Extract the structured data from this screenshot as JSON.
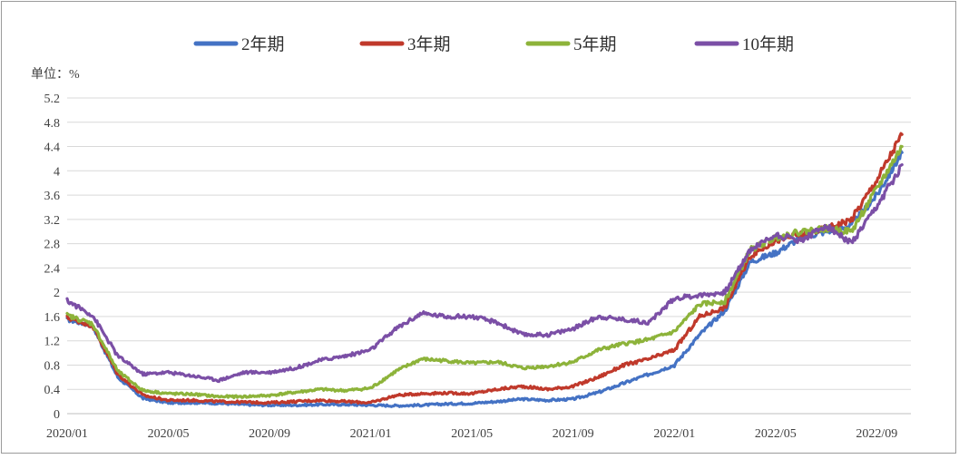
{
  "chart_data": {
    "type": "line",
    "unit_label": "单位：%",
    "yticks": [
      "0",
      "0.4",
      "0.8",
      "1.2",
      "1.6",
      "2",
      "2.4",
      "2.8",
      "3.2",
      "3.6",
      "4",
      "4.4",
      "4.8",
      "5.2"
    ],
    "ylim": [
      0,
      5.2
    ],
    "xticks": [
      "2020/01",
      "2020/05",
      "2020/09",
      "2021/01",
      "2021/05",
      "2021/09",
      "2022/01",
      "2022/05",
      "2022/09"
    ],
    "x_range": [
      "2020/01",
      "2022/10"
    ],
    "grid": true,
    "legend_position": "top",
    "series": [
      {
        "name": "2年期",
        "color": "#4472C4",
        "points": [
          [
            "2020/01",
            1.55
          ],
          [
            "2020/02",
            1.45
          ],
          [
            "2020/03",
            0.6
          ],
          [
            "2020/04",
            0.25
          ],
          [
            "2020/05",
            0.18
          ],
          [
            "2020/06",
            0.18
          ],
          [
            "2020/07",
            0.17
          ],
          [
            "2020/08",
            0.15
          ],
          [
            "2020/09",
            0.14
          ],
          [
            "2020/10",
            0.14
          ],
          [
            "2020/11",
            0.15
          ],
          [
            "2020/12",
            0.15
          ],
          [
            "2021/01",
            0.14
          ],
          [
            "2021/02",
            0.13
          ],
          [
            "2021/03",
            0.14
          ],
          [
            "2021/04",
            0.16
          ],
          [
            "2021/05",
            0.17
          ],
          [
            "2021/06",
            0.2
          ],
          [
            "2021/07",
            0.24
          ],
          [
            "2021/08",
            0.22
          ],
          [
            "2021/09",
            0.24
          ],
          [
            "2021/10",
            0.35
          ],
          [
            "2021/11",
            0.5
          ],
          [
            "2021/12",
            0.65
          ],
          [
            "2022/01",
            0.8
          ],
          [
            "2022/02",
            1.3
          ],
          [
            "2022/03",
            1.7
          ],
          [
            "2022/04",
            2.5
          ],
          [
            "2022/05",
            2.65
          ],
          [
            "2022/06",
            2.9
          ],
          [
            "2022/07",
            3.0
          ],
          [
            "2022/08",
            3.1
          ],
          [
            "2022/09",
            3.6
          ],
          [
            "2022/10",
            4.3
          ]
        ]
      },
      {
        "name": "3年期",
        "color": "#C0392B",
        "points": [
          [
            "2020/01",
            1.58
          ],
          [
            "2020/02",
            1.45
          ],
          [
            "2020/03",
            0.65
          ],
          [
            "2020/04",
            0.3
          ],
          [
            "2020/05",
            0.22
          ],
          [
            "2020/06",
            0.22
          ],
          [
            "2020/07",
            0.2
          ],
          [
            "2020/08",
            0.19
          ],
          [
            "2020/09",
            0.18
          ],
          [
            "2020/10",
            0.2
          ],
          [
            "2020/11",
            0.22
          ],
          [
            "2020/12",
            0.2
          ],
          [
            "2021/01",
            0.18
          ],
          [
            "2021/02",
            0.3
          ],
          [
            "2021/03",
            0.33
          ],
          [
            "2021/04",
            0.34
          ],
          [
            "2021/05",
            0.33
          ],
          [
            "2021/06",
            0.4
          ],
          [
            "2021/07",
            0.45
          ],
          [
            "2021/08",
            0.4
          ],
          [
            "2021/09",
            0.45
          ],
          [
            "2021/10",
            0.6
          ],
          [
            "2021/11",
            0.8
          ],
          [
            "2021/12",
            0.9
          ],
          [
            "2022/01",
            1.05
          ],
          [
            "2022/02",
            1.6
          ],
          [
            "2022/03",
            1.75
          ],
          [
            "2022/04",
            2.6
          ],
          [
            "2022/05",
            2.85
          ],
          [
            "2022/06",
            2.95
          ],
          [
            "2022/07",
            3.05
          ],
          [
            "2022/08",
            3.2
          ],
          [
            "2022/09",
            3.85
          ],
          [
            "2022/10",
            4.6
          ]
        ]
      },
      {
        "name": "5年期",
        "color": "#8DB33A",
        "points": [
          [
            "2020/01",
            1.62
          ],
          [
            "2020/02",
            1.48
          ],
          [
            "2020/03",
            0.7
          ],
          [
            "2020/04",
            0.38
          ],
          [
            "2020/05",
            0.33
          ],
          [
            "2020/06",
            0.32
          ],
          [
            "2020/07",
            0.28
          ],
          [
            "2020/08",
            0.28
          ],
          [
            "2020/09",
            0.3
          ],
          [
            "2020/10",
            0.35
          ],
          [
            "2020/11",
            0.4
          ],
          [
            "2020/12",
            0.38
          ],
          [
            "2021/01",
            0.42
          ],
          [
            "2021/02",
            0.7
          ],
          [
            "2021/03",
            0.9
          ],
          [
            "2021/04",
            0.87
          ],
          [
            "2021/05",
            0.83
          ],
          [
            "2021/06",
            0.85
          ],
          [
            "2021/07",
            0.75
          ],
          [
            "2021/08",
            0.78
          ],
          [
            "2021/09",
            0.85
          ],
          [
            "2021/10",
            1.05
          ],
          [
            "2021/11",
            1.15
          ],
          [
            "2021/12",
            1.22
          ],
          [
            "2022/01",
            1.35
          ],
          [
            "2022/02",
            1.8
          ],
          [
            "2022/03",
            1.85
          ],
          [
            "2022/04",
            2.7
          ],
          [
            "2022/05",
            2.9
          ],
          [
            "2022/06",
            3.0
          ],
          [
            "2022/07",
            3.05
          ],
          [
            "2022/08",
            3.0
          ],
          [
            "2022/09",
            3.7
          ],
          [
            "2022/10",
            4.4
          ]
        ]
      },
      {
        "name": "10年期",
        "color": "#7B4FA6",
        "points": [
          [
            "2020/01",
            1.86
          ],
          [
            "2020/02",
            1.62
          ],
          [
            "2020/03",
            0.95
          ],
          [
            "2020/04",
            0.65
          ],
          [
            "2020/05",
            0.68
          ],
          [
            "2020/06",
            0.62
          ],
          [
            "2020/07",
            0.55
          ],
          [
            "2020/08",
            0.68
          ],
          [
            "2020/09",
            0.68
          ],
          [
            "2020/10",
            0.75
          ],
          [
            "2020/11",
            0.88
          ],
          [
            "2020/12",
            0.95
          ],
          [
            "2021/01",
            1.05
          ],
          [
            "2021/02",
            1.4
          ],
          [
            "2021/03",
            1.65
          ],
          [
            "2021/04",
            1.6
          ],
          [
            "2021/05",
            1.6
          ],
          [
            "2021/06",
            1.5
          ],
          [
            "2021/07",
            1.3
          ],
          [
            "2021/08",
            1.3
          ],
          [
            "2021/09",
            1.4
          ],
          [
            "2021/10",
            1.6
          ],
          [
            "2021/11",
            1.55
          ],
          [
            "2021/12",
            1.5
          ],
          [
            "2022/01",
            1.9
          ],
          [
            "2022/02",
            1.95
          ],
          [
            "2022/03",
            2.0
          ],
          [
            "2022/04",
            2.7
          ],
          [
            "2022/05",
            2.95
          ],
          [
            "2022/06",
            2.85
          ],
          [
            "2022/07",
            3.1
          ],
          [
            "2022/08",
            2.8
          ],
          [
            "2022/09",
            3.4
          ],
          [
            "2022/10",
            4.1
          ]
        ]
      }
    ]
  }
}
